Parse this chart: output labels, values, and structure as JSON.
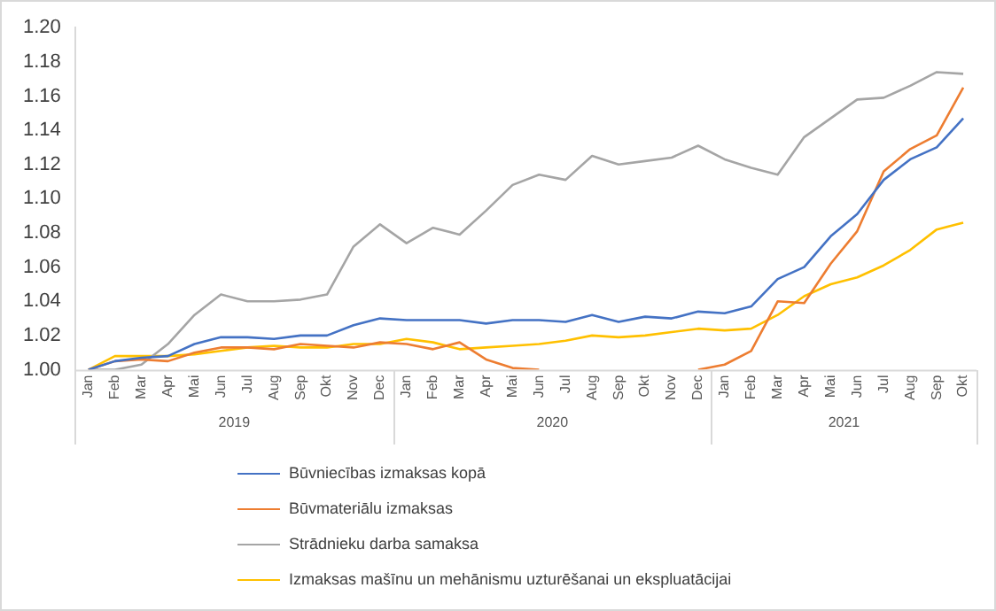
{
  "chart_data": {
    "type": "line",
    "categories": [
      "Jan",
      "Feb",
      "Mar",
      "Apr",
      "Mai",
      "Jun",
      "Jul",
      "Aug",
      "Sep",
      "Okt",
      "Nov",
      "Dec",
      "Jan",
      "Feb",
      "Mar",
      "Apr",
      "Mai",
      "Jun",
      "Jul",
      "Aug",
      "Sep",
      "Okt",
      "Nov",
      "Dec",
      "Jan",
      "Feb",
      "Mar",
      "Apr",
      "Mai",
      "Jun",
      "Jul",
      "Aug",
      "Sep",
      "Okt"
    ],
    "annotations": [
      "2019",
      "2020",
      "2021"
    ],
    "series": [
      {
        "name": "Būvniecības izmaksas kopā",
        "color": "#4472c4",
        "values": [
          1.0,
          1.005,
          1.007,
          1.008,
          1.015,
          1.019,
          1.019,
          1.018,
          1.02,
          1.02,
          1.026,
          1.03,
          1.029,
          1.029,
          1.029,
          1.027,
          1.029,
          1.029,
          1.028,
          1.032,
          1.028,
          1.031,
          1.03,
          1.034,
          1.033,
          1.037,
          1.053,
          1.06,
          1.078,
          1.091,
          1.111,
          1.123,
          1.13,
          1.147
        ]
      },
      {
        "name": "Būvmateriālu izmaksas",
        "color": "#ed7d31",
        "values": [
          1.0,
          1.005,
          1.006,
          1.005,
          1.01,
          1.013,
          1.013,
          1.012,
          1.015,
          1.014,
          1.013,
          1.016,
          1.015,
          1.012,
          1.016,
          1.006,
          1.001,
          1.0,
          null,
          null,
          null,
          null,
          null,
          1.0,
          1.003,
          1.011,
          1.04,
          1.039,
          1.062,
          1.081,
          1.116,
          1.129,
          1.137,
          1.165
        ]
      },
      {
        "name": "Strādnieku darba samaksa",
        "color": "#a5a5a5",
        "values": [
          1.0,
          1.0,
          1.003,
          1.015,
          1.032,
          1.044,
          1.04,
          1.04,
          1.041,
          1.044,
          1.072,
          1.085,
          1.074,
          1.083,
          1.079,
          1.093,
          1.108,
          1.114,
          1.111,
          1.125,
          1.12,
          1.122,
          1.124,
          1.131,
          1.123,
          1.118,
          1.114,
          1.136,
          1.147,
          1.158,
          1.159,
          1.166,
          1.174,
          1.173
        ]
      },
      {
        "name": "Izmaksas mašīnu un mehānismu uzturēšanai un ekspluatācijai",
        "color": "#ffc000",
        "values": [
          1.0,
          1.008,
          1.008,
          1.008,
          1.009,
          1.011,
          1.013,
          1.014,
          1.013,
          1.013,
          1.015,
          1.015,
          1.018,
          1.016,
          1.012,
          1.013,
          1.014,
          1.015,
          1.017,
          1.02,
          1.019,
          1.02,
          1.022,
          1.024,
          1.023,
          1.024,
          1.032,
          1.043,
          1.05,
          1.054,
          1.061,
          1.07,
          1.082,
          1.086
        ]
      }
    ],
    "ylim": [
      1.0,
      1.2
    ],
    "yticks": [
      {
        "value": 1.0,
        "label": "1.00"
      },
      {
        "value": 1.02,
        "label": "1.02"
      },
      {
        "value": 1.04,
        "label": "1.04"
      },
      {
        "value": 1.06,
        "label": "1.06"
      },
      {
        "value": 1.08,
        "label": "1.08"
      },
      {
        "value": 1.1,
        "label": "1.10"
      },
      {
        "value": 1.12,
        "label": "1.12"
      },
      {
        "value": 1.14,
        "label": "1.14"
      },
      {
        "value": 1.16,
        "label": "1.16"
      },
      {
        "value": 1.18,
        "label": "1.18"
      },
      {
        "value": 1.2,
        "label": "1.20"
      }
    ],
    "grid": false,
    "legend": "bottom",
    "marker": "none",
    "line_style": "solid"
  }
}
